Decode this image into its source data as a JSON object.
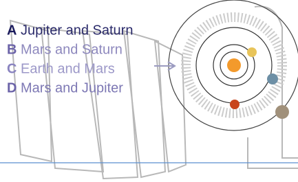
{
  "options": [
    {
      "letter": "A",
      "text": "Jupiter and Saturn"
    },
    {
      "letter": "B",
      "text": "Mars and Saturn"
    },
    {
      "letter": "C",
      "text": "Earth and Mars"
    },
    {
      "letter": "D",
      "text": "Mars and Jupiter"
    }
  ]
}
